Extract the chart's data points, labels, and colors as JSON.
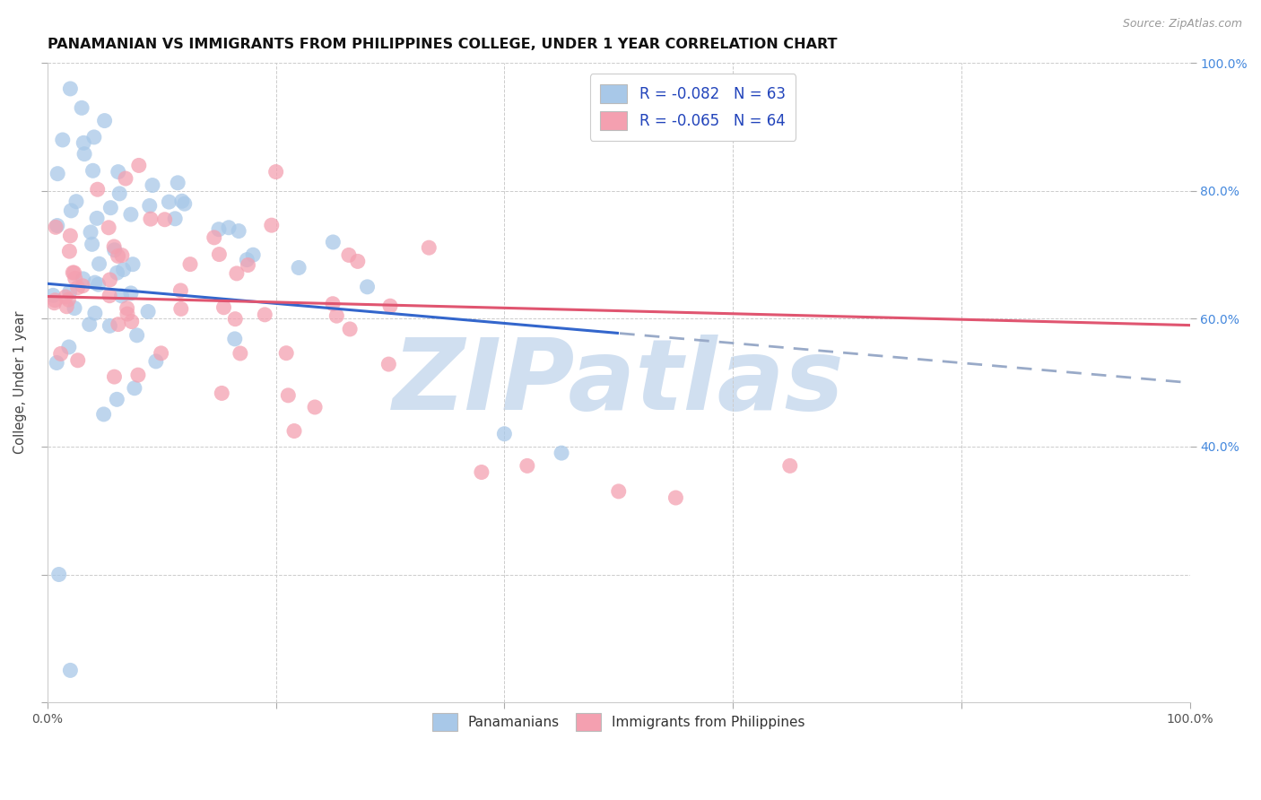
{
  "title": "PANAMANIAN VS IMMIGRANTS FROM PHILIPPINES COLLEGE, UNDER 1 YEAR CORRELATION CHART",
  "source": "Source: ZipAtlas.com",
  "ylabel": "College, Under 1 year",
  "xlim": [
    0.0,
    100.0
  ],
  "ylim": [
    0.0,
    100.0
  ],
  "legend_labels": [
    "Panamanians",
    "Immigrants from Philippines"
  ],
  "blue_R": -0.082,
  "blue_N": 63,
  "pink_R": -0.065,
  "pink_N": 64,
  "blue_color": "#a8c8e8",
  "pink_color": "#f4a0b0",
  "blue_line_color": "#3366cc",
  "pink_line_color": "#e05570",
  "blue_dashed_color": "#99aac8",
  "watermark": "ZIPatlas",
  "watermark_color": "#d0dff0",
  "background_color": "#ffffff",
  "grid_color": "#cccccc",
  "right_tick_color": "#4488dd",
  "title_color": "#111111",
  "blue_intercept": 65.5,
  "blue_slope": -0.155,
  "pink_intercept": 63.5,
  "pink_slope": -0.045,
  "blue_solid_end": 50.0,
  "blue_x_start": 0.0,
  "blue_x_end": 100.0,
  "pink_x_start": 0.0,
  "pink_x_end": 100.0
}
